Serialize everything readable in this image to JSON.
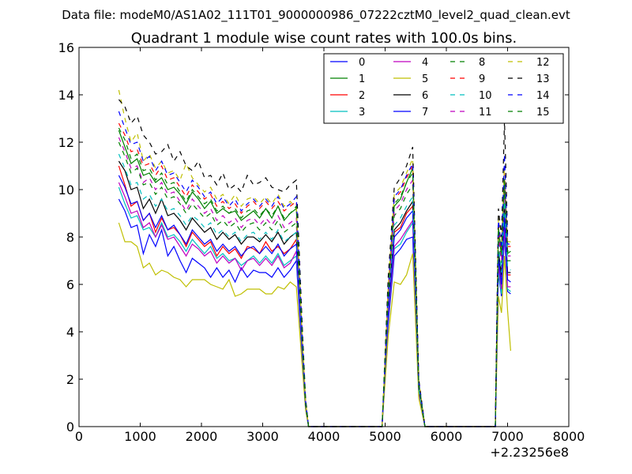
{
  "figure": {
    "suptitle": "Data file: modeM0/AS1A02_111T01_9000000986_07222cztM0_level2_quad_clean.evt"
  },
  "chart_data": {
    "type": "line",
    "title": "Quadrant 1 module wise count rates with 100.0s bins.",
    "xlabel": "",
    "ylabel": "",
    "xlim": [
      0,
      8000
    ],
    "ylim": [
      0,
      16
    ],
    "x_offset_label": "+2.23256e8",
    "x_ticks": [
      0,
      1000,
      2000,
      3000,
      4000,
      5000,
      6000,
      7000,
      8000
    ],
    "y_ticks": [
      0,
      2,
      4,
      6,
      8,
      10,
      12,
      14,
      16
    ],
    "grid": false,
    "legend_position": "top-right",
    "legend_columns": 4,
    "x": [
      650,
      750,
      850,
      950,
      1050,
      1150,
      1250,
      1350,
      1450,
      1550,
      1650,
      1750,
      1850,
      1950,
      2050,
      2150,
      2250,
      2350,
      2450,
      2550,
      2650,
      2750,
      2850,
      2950,
      3050,
      3150,
      3250,
      3350,
      3450,
      3550,
      3650,
      3700,
      3750,
      4000,
      4500,
      4950,
      5050,
      5150,
      5250,
      5350,
      5450,
      5550,
      5650,
      6000,
      6500,
      6800,
      6850,
      6900,
      6950,
      7000,
      7050
    ],
    "series": [
      {
        "name": "0",
        "color": "#0000ff",
        "dash": false,
        "values": [
          9.6,
          9.1,
          8.4,
          8.5,
          7.3,
          8.1,
          7.6,
          8.3,
          7.2,
          7.6,
          7.0,
          6.5,
          7.1,
          6.9,
          6.7,
          6.3,
          6.7,
          6.3,
          6.6,
          6.1,
          6.7,
          6.3,
          6.6,
          6.5,
          6.5,
          6.3,
          6.7,
          6.3,
          6.6,
          7.0,
          2.7,
          0.8,
          0,
          0,
          0,
          0,
          4.3,
          7.2,
          7.5,
          7.9,
          8.0,
          1.5,
          0,
          0,
          0,
          0,
          6.5,
          5.5,
          8.0,
          5.7,
          5.6
        ]
      },
      {
        "name": "1",
        "color": "#008000",
        "dash": false,
        "values": [
          12.5,
          11.8,
          11.1,
          11.3,
          10.6,
          10.7,
          10.3,
          10.5,
          10.0,
          10.1,
          9.8,
          9.4,
          9.9,
          9.6,
          9.2,
          9.5,
          9.0,
          9.2,
          9.0,
          9.1,
          8.7,
          8.9,
          9.1,
          8.8,
          9.2,
          8.8,
          9.3,
          8.7,
          9.0,
          9.2,
          3.4,
          1.0,
          0,
          0,
          0,
          0,
          5.5,
          9.3,
          9.6,
          10.3,
          10.9,
          1.8,
          0,
          0,
          0,
          0,
          8.3,
          7.2,
          10.3,
          7.3,
          7.4
        ]
      },
      {
        "name": "2",
        "color": "#ff0000",
        "dash": false,
        "values": [
          11.0,
          10.2,
          9.3,
          9.5,
          8.7,
          9.0,
          8.2,
          8.8,
          8.3,
          8.4,
          8.1,
          7.6,
          8.2,
          7.9,
          7.6,
          7.8,
          7.2,
          7.6,
          7.3,
          7.5,
          7.1,
          7.6,
          7.5,
          7.3,
          7.8,
          7.4,
          7.6,
          7.3,
          7.5,
          7.9,
          3.0,
          0.9,
          0,
          0,
          0,
          0,
          4.9,
          8.2,
          8.4,
          9.0,
          9.3,
          1.6,
          0,
          0,
          0,
          0,
          7.3,
          6.3,
          9.0,
          6.4,
          6.4
        ]
      },
      {
        "name": "3",
        "color": "#00bfbf",
        "dash": false,
        "values": [
          10.1,
          9.4,
          8.8,
          8.9,
          8.3,
          8.4,
          8.0,
          8.6,
          8.0,
          8.1,
          7.8,
          7.4,
          7.9,
          7.6,
          7.3,
          7.6,
          7.1,
          7.3,
          7.0,
          7.1,
          6.8,
          7.0,
          7.2,
          6.9,
          7.2,
          6.9,
          7.3,
          6.8,
          7.0,
          7.2,
          2.9,
          0.8,
          0,
          0,
          0,
          0,
          4.5,
          7.5,
          7.7,
          8.2,
          8.6,
          1.5,
          0,
          0,
          0,
          0,
          6.6,
          5.6,
          8.2,
          5.8,
          5.7
        ]
      },
      {
        "name": "4",
        "color": "#bf00bf",
        "dash": false,
        "values": [
          10.3,
          9.7,
          9.0,
          9.1,
          8.4,
          8.6,
          8.0,
          8.5,
          7.9,
          8.0,
          7.6,
          7.2,
          7.7,
          7.5,
          7.2,
          7.4,
          6.9,
          7.2,
          6.9,
          7.1,
          6.6,
          7.0,
          7.1,
          6.8,
          7.1,
          6.8,
          7.2,
          6.7,
          6.9,
          7.4,
          2.9,
          0.8,
          0,
          0,
          0,
          0,
          4.6,
          7.6,
          7.9,
          8.3,
          8.7,
          1.5,
          0,
          0,
          0,
          0,
          6.8,
          5.8,
          8.4,
          5.9,
          5.9
        ]
      },
      {
        "name": "5",
        "color": "#bfbf00",
        "dash": false,
        "values": [
          8.6,
          7.8,
          7.8,
          7.6,
          6.7,
          6.9,
          6.4,
          6.6,
          6.5,
          6.3,
          6.2,
          5.9,
          6.2,
          6.2,
          6.2,
          6.0,
          5.9,
          5.8,
          6.2,
          5.5,
          5.6,
          5.8,
          5.8,
          5.8,
          5.6,
          5.6,
          5.9,
          5.8,
          6.1,
          5.9,
          2.4,
          0.7,
          0,
          0,
          0,
          0,
          3.8,
          6.1,
          6.0,
          6.4,
          7.3,
          1.2,
          0,
          0,
          0,
          0,
          5.5,
          4.8,
          7.2,
          4.9,
          3.2
        ]
      },
      {
        "name": "6",
        "color": "#000000",
        "dash": false,
        "values": [
          11.2,
          10.8,
          10.0,
          10.1,
          9.2,
          9.6,
          9.0,
          9.6,
          8.9,
          9.0,
          8.7,
          8.3,
          8.8,
          8.5,
          8.2,
          8.4,
          7.9,
          8.2,
          7.9,
          8.1,
          7.7,
          8.0,
          8.0,
          7.8,
          8.1,
          7.8,
          8.2,
          7.7,
          8.0,
          8.2,
          3.1,
          0.9,
          0,
          0,
          0,
          0,
          5.0,
          8.3,
          8.6,
          9.1,
          9.5,
          1.6,
          0,
          0,
          0,
          0,
          7.4,
          6.4,
          9.2,
          6.5,
          6.5
        ]
      },
      {
        "name": "7",
        "color": "#0000ff",
        "dash": false,
        "values": [
          10.6,
          10.1,
          9.4,
          9.5,
          8.7,
          9.0,
          8.4,
          8.9,
          8.3,
          8.5,
          8.1,
          7.7,
          8.3,
          8.0,
          7.7,
          7.9,
          7.4,
          7.7,
          7.4,
          7.6,
          7.2,
          7.5,
          7.6,
          7.3,
          7.6,
          7.3,
          7.7,
          7.2,
          7.5,
          7.7,
          3.0,
          0.9,
          0,
          0,
          0,
          0,
          4.8,
          8.0,
          8.3,
          8.8,
          9.1,
          1.6,
          0,
          0,
          0,
          0,
          7.1,
          6.0,
          8.9,
          6.2,
          6.1
        ]
      },
      {
        "name": "8",
        "color": "#008000",
        "dash": true,
        "values": [
          12.0,
          11.4,
          10.7,
          10.9,
          10.2,
          10.3,
          9.8,
          10.1,
          9.6,
          9.7,
          9.4,
          9.0,
          9.4,
          9.1,
          8.8,
          9.0,
          8.5,
          8.7,
          8.4,
          8.6,
          8.2,
          8.5,
          8.6,
          8.3,
          8.6,
          8.3,
          8.7,
          8.2,
          8.4,
          8.6,
          3.3,
          1.0,
          0,
          0,
          0,
          0,
          5.3,
          8.9,
          9.2,
          9.8,
          10.2,
          1.7,
          0,
          0,
          0,
          0,
          7.9,
          6.9,
          9.9,
          7.0,
          7.0
        ]
      },
      {
        "name": "9",
        "color": "#ff0000",
        "dash": true,
        "values": [
          12.8,
          12.3,
          11.6,
          11.7,
          11.0,
          11.1,
          10.6,
          11.0,
          10.4,
          10.5,
          10.1,
          9.7,
          10.2,
          9.9,
          9.6,
          9.8,
          9.3,
          9.5,
          9.2,
          9.4,
          9.0,
          9.3,
          9.5,
          9.2,
          9.5,
          9.2,
          9.5,
          9.1,
          9.3,
          9.5,
          3.6,
          1.1,
          0,
          0,
          0,
          0,
          5.7,
          9.6,
          9.9,
          10.5,
          11.0,
          1.9,
          0,
          0,
          0,
          0,
          8.6,
          7.4,
          10.7,
          7.6,
          7.6
        ]
      },
      {
        "name": "10",
        "color": "#00bfbf",
        "dash": true,
        "values": [
          11.5,
          10.9,
          10.2,
          10.3,
          9.6,
          9.8,
          9.3,
          9.6,
          9.1,
          9.2,
          8.9,
          8.5,
          8.9,
          8.7,
          8.4,
          8.6,
          8.1,
          8.3,
          8.0,
          8.2,
          7.8,
          8.1,
          8.2,
          7.9,
          8.2,
          7.9,
          8.3,
          7.8,
          8.0,
          8.2,
          3.2,
          0.9,
          0,
          0,
          0,
          0,
          5.1,
          8.5,
          8.8,
          9.3,
          9.7,
          1.6,
          0,
          0,
          0,
          0,
          7.6,
          6.5,
          9.5,
          6.7,
          6.6
        ]
      },
      {
        "name": "11",
        "color": "#bf00bf",
        "dash": true,
        "values": [
          12.2,
          11.6,
          10.9,
          11.0,
          10.3,
          10.5,
          10.0,
          10.3,
          9.8,
          9.9,
          9.5,
          9.1,
          9.6,
          9.3,
          9.0,
          9.2,
          8.7,
          8.9,
          8.6,
          8.8,
          8.4,
          8.7,
          8.8,
          8.5,
          8.8,
          8.5,
          8.9,
          8.4,
          8.6,
          8.8,
          3.4,
          1.0,
          0,
          0,
          0,
          0,
          5.4,
          9.1,
          9.4,
          10.0,
          10.4,
          1.8,
          0,
          0,
          0,
          0,
          8.1,
          7.0,
          10.1,
          7.2,
          7.2
        ]
      },
      {
        "name": "12",
        "color": "#bfbf00",
        "dash": true,
        "values": [
          14.2,
          13.0,
          12.0,
          12.4,
          11.2,
          11.5,
          10.9,
          11.2,
          10.7,
          10.8,
          10.4,
          11.1,
          10.5,
          10.2,
          9.9,
          10.1,
          9.6,
          9.8,
          9.4,
          9.8,
          9.3,
          9.6,
          9.7,
          9.4,
          9.7,
          9.4,
          9.8,
          9.3,
          9.5,
          9.2,
          3.6,
          1.1,
          0,
          0,
          0,
          0,
          5.9,
          9.8,
          10.1,
          10.7,
          11.3,
          1.9,
          0,
          0,
          0,
          0,
          8.8,
          7.6,
          11.0,
          7.8,
          7.8
        ]
      },
      {
        "name": "13",
        "color": "#000000",
        "dash": true,
        "values": [
          13.8,
          13.5,
          12.8,
          13.1,
          12.3,
          12.0,
          11.5,
          11.6,
          11.9,
          11.2,
          11.6,
          11.0,
          10.8,
          11.2,
          10.5,
          10.6,
          10.2,
          10.7,
          10.0,
          10.2,
          9.9,
          10.6,
          10.2,
          10.3,
          10.5,
          10.1,
          10.0,
          9.9,
          10.2,
          10.4,
          4.0,
          1.2,
          0,
          0,
          0,
          0,
          6.3,
          10.1,
          10.5,
          11.0,
          11.8,
          2.0,
          0,
          0,
          0,
          0,
          9.2,
          8.0,
          12.9,
          8.1,
          8.1
        ]
      },
      {
        "name": "14",
        "color": "#0000ff",
        "dash": true,
        "values": [
          13.3,
          12.6,
          11.9,
          12.0,
          11.2,
          11.4,
          10.8,
          11.2,
          10.6,
          10.7,
          10.3,
          9.9,
          10.4,
          10.1,
          9.7,
          9.9,
          9.4,
          9.7,
          9.3,
          9.6,
          9.1,
          9.4,
          9.6,
          9.3,
          9.6,
          9.3,
          9.7,
          9.2,
          9.4,
          9.7,
          3.7,
          1.1,
          0,
          0,
          0,
          0,
          5.8,
          9.7,
          10.0,
          10.6,
          11.1,
          1.9,
          0,
          0,
          0,
          0,
          8.7,
          7.5,
          11.5,
          7.7,
          7.7
        ]
      },
      {
        "name": "15",
        "color": "#008000",
        "dash": true,
        "values": [
          12.6,
          12.1,
          11.3,
          11.5,
          10.8,
          10.9,
          10.4,
          10.7,
          10.2,
          10.3,
          9.9,
          9.5,
          10.0,
          9.7,
          9.4,
          9.6,
          9.1,
          9.3,
          9.0,
          9.2,
          8.8,
          9.1,
          9.2,
          8.9,
          9.2,
          8.9,
          9.3,
          8.8,
          9.0,
          9.3,
          3.5,
          1.0,
          0,
          0,
          0,
          0,
          5.6,
          9.4,
          9.7,
          10.3,
          10.7,
          1.8,
          0,
          0,
          0,
          0,
          8.4,
          7.3,
          10.5,
          7.4,
          7.4
        ]
      }
    ]
  }
}
